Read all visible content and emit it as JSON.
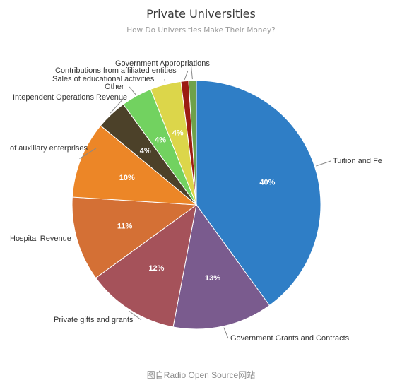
{
  "caption": "图自Radio Open Source网站",
  "chart_data": {
    "type": "pie",
    "title": "Private Universities",
    "subtitle": "How Do Universities Make Their Money?",
    "slices": [
      {
        "label": "Tuition and Fe",
        "value": 40,
        "percent_label": "40%",
        "color": "#2f7ec6"
      },
      {
        "label": "Government Grants and Contracts",
        "value": 13,
        "percent_label": "13%",
        "color": "#7a5b8e"
      },
      {
        "label": "Private gifts and grants",
        "value": 12,
        "percent_label": "12%",
        "color": "#a5525a"
      },
      {
        "label": "Hospital Revenue",
        "value": 11,
        "percent_label": "11%",
        "color": "#d47035"
      },
      {
        "label": "of auxiliary enterprises",
        "value": 10,
        "percent_label": "10%",
        "color": "#ec8627"
      },
      {
        "label": "Intependent Operations Revenue",
        "value": 4,
        "percent_label": "4%",
        "color": "#4c4129"
      },
      {
        "label": "Other",
        "value": 4,
        "percent_label": "4%",
        "color": "#72d260"
      },
      {
        "label": "Sales of educational activities",
        "value": 4,
        "percent_label": "4%",
        "color": "#dcd64a"
      },
      {
        "label": "Contributions from affiliated entities",
        "value": 1,
        "percent_label": "",
        "color": "#9c1c12"
      },
      {
        "label": "Government Appropriations",
        "value": 1,
        "percent_label": "",
        "color": "#6fa14a"
      }
    ]
  }
}
